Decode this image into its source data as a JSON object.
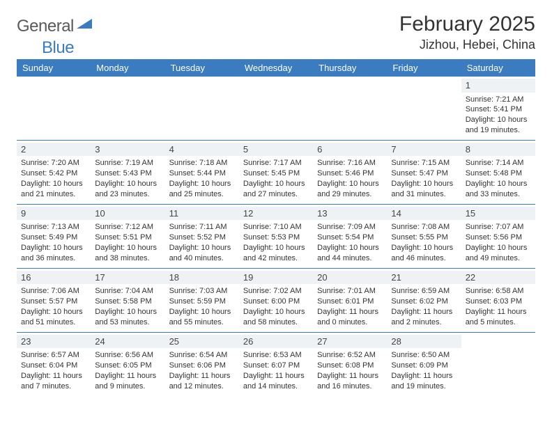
{
  "brand": {
    "part1": "General",
    "part2": "Blue",
    "accent_color": "#3b7bbf",
    "text_color": "#5a5a5a"
  },
  "title": "February 2025",
  "location": "Jizhou, Hebei, China",
  "header_row_color": "#3b7bbf",
  "border_color": "#3b7bbf",
  "daynum_bg": "#eef2f5",
  "weekdays": [
    "Sunday",
    "Monday",
    "Tuesday",
    "Wednesday",
    "Thursday",
    "Friday",
    "Saturday"
  ],
  "weeks": [
    [
      null,
      null,
      null,
      null,
      null,
      null,
      {
        "n": "1",
        "sunrise": "7:21 AM",
        "sunset": "5:41 PM",
        "daylight": "10 hours and 19 minutes."
      }
    ],
    [
      {
        "n": "2",
        "sunrise": "7:20 AM",
        "sunset": "5:42 PM",
        "daylight": "10 hours and 21 minutes."
      },
      {
        "n": "3",
        "sunrise": "7:19 AM",
        "sunset": "5:43 PM",
        "daylight": "10 hours and 23 minutes."
      },
      {
        "n": "4",
        "sunrise": "7:18 AM",
        "sunset": "5:44 PM",
        "daylight": "10 hours and 25 minutes."
      },
      {
        "n": "5",
        "sunrise": "7:17 AM",
        "sunset": "5:45 PM",
        "daylight": "10 hours and 27 minutes."
      },
      {
        "n": "6",
        "sunrise": "7:16 AM",
        "sunset": "5:46 PM",
        "daylight": "10 hours and 29 minutes."
      },
      {
        "n": "7",
        "sunrise": "7:15 AM",
        "sunset": "5:47 PM",
        "daylight": "10 hours and 31 minutes."
      },
      {
        "n": "8",
        "sunrise": "7:14 AM",
        "sunset": "5:48 PM",
        "daylight": "10 hours and 33 minutes."
      }
    ],
    [
      {
        "n": "9",
        "sunrise": "7:13 AM",
        "sunset": "5:49 PM",
        "daylight": "10 hours and 36 minutes."
      },
      {
        "n": "10",
        "sunrise": "7:12 AM",
        "sunset": "5:51 PM",
        "daylight": "10 hours and 38 minutes."
      },
      {
        "n": "11",
        "sunrise": "7:11 AM",
        "sunset": "5:52 PM",
        "daylight": "10 hours and 40 minutes."
      },
      {
        "n": "12",
        "sunrise": "7:10 AM",
        "sunset": "5:53 PM",
        "daylight": "10 hours and 42 minutes."
      },
      {
        "n": "13",
        "sunrise": "7:09 AM",
        "sunset": "5:54 PM",
        "daylight": "10 hours and 44 minutes."
      },
      {
        "n": "14",
        "sunrise": "7:08 AM",
        "sunset": "5:55 PM",
        "daylight": "10 hours and 46 minutes."
      },
      {
        "n": "15",
        "sunrise": "7:07 AM",
        "sunset": "5:56 PM",
        "daylight": "10 hours and 49 minutes."
      }
    ],
    [
      {
        "n": "16",
        "sunrise": "7:06 AM",
        "sunset": "5:57 PM",
        "daylight": "10 hours and 51 minutes."
      },
      {
        "n": "17",
        "sunrise": "7:04 AM",
        "sunset": "5:58 PM",
        "daylight": "10 hours and 53 minutes."
      },
      {
        "n": "18",
        "sunrise": "7:03 AM",
        "sunset": "5:59 PM",
        "daylight": "10 hours and 55 minutes."
      },
      {
        "n": "19",
        "sunrise": "7:02 AM",
        "sunset": "6:00 PM",
        "daylight": "10 hours and 58 minutes."
      },
      {
        "n": "20",
        "sunrise": "7:01 AM",
        "sunset": "6:01 PM",
        "daylight": "11 hours and 0 minutes."
      },
      {
        "n": "21",
        "sunrise": "6:59 AM",
        "sunset": "6:02 PM",
        "daylight": "11 hours and 2 minutes."
      },
      {
        "n": "22",
        "sunrise": "6:58 AM",
        "sunset": "6:03 PM",
        "daylight": "11 hours and 5 minutes."
      }
    ],
    [
      {
        "n": "23",
        "sunrise": "6:57 AM",
        "sunset": "6:04 PM",
        "daylight": "11 hours and 7 minutes."
      },
      {
        "n": "24",
        "sunrise": "6:56 AM",
        "sunset": "6:05 PM",
        "daylight": "11 hours and 9 minutes."
      },
      {
        "n": "25",
        "sunrise": "6:54 AM",
        "sunset": "6:06 PM",
        "daylight": "11 hours and 12 minutes."
      },
      {
        "n": "26",
        "sunrise": "6:53 AM",
        "sunset": "6:07 PM",
        "daylight": "11 hours and 14 minutes."
      },
      {
        "n": "27",
        "sunrise": "6:52 AM",
        "sunset": "6:08 PM",
        "daylight": "11 hours and 16 minutes."
      },
      {
        "n": "28",
        "sunrise": "6:50 AM",
        "sunset": "6:09 PM",
        "daylight": "11 hours and 19 minutes."
      },
      null
    ]
  ],
  "labels": {
    "sunrise": "Sunrise:",
    "sunset": "Sunset:",
    "daylight": "Daylight:"
  }
}
